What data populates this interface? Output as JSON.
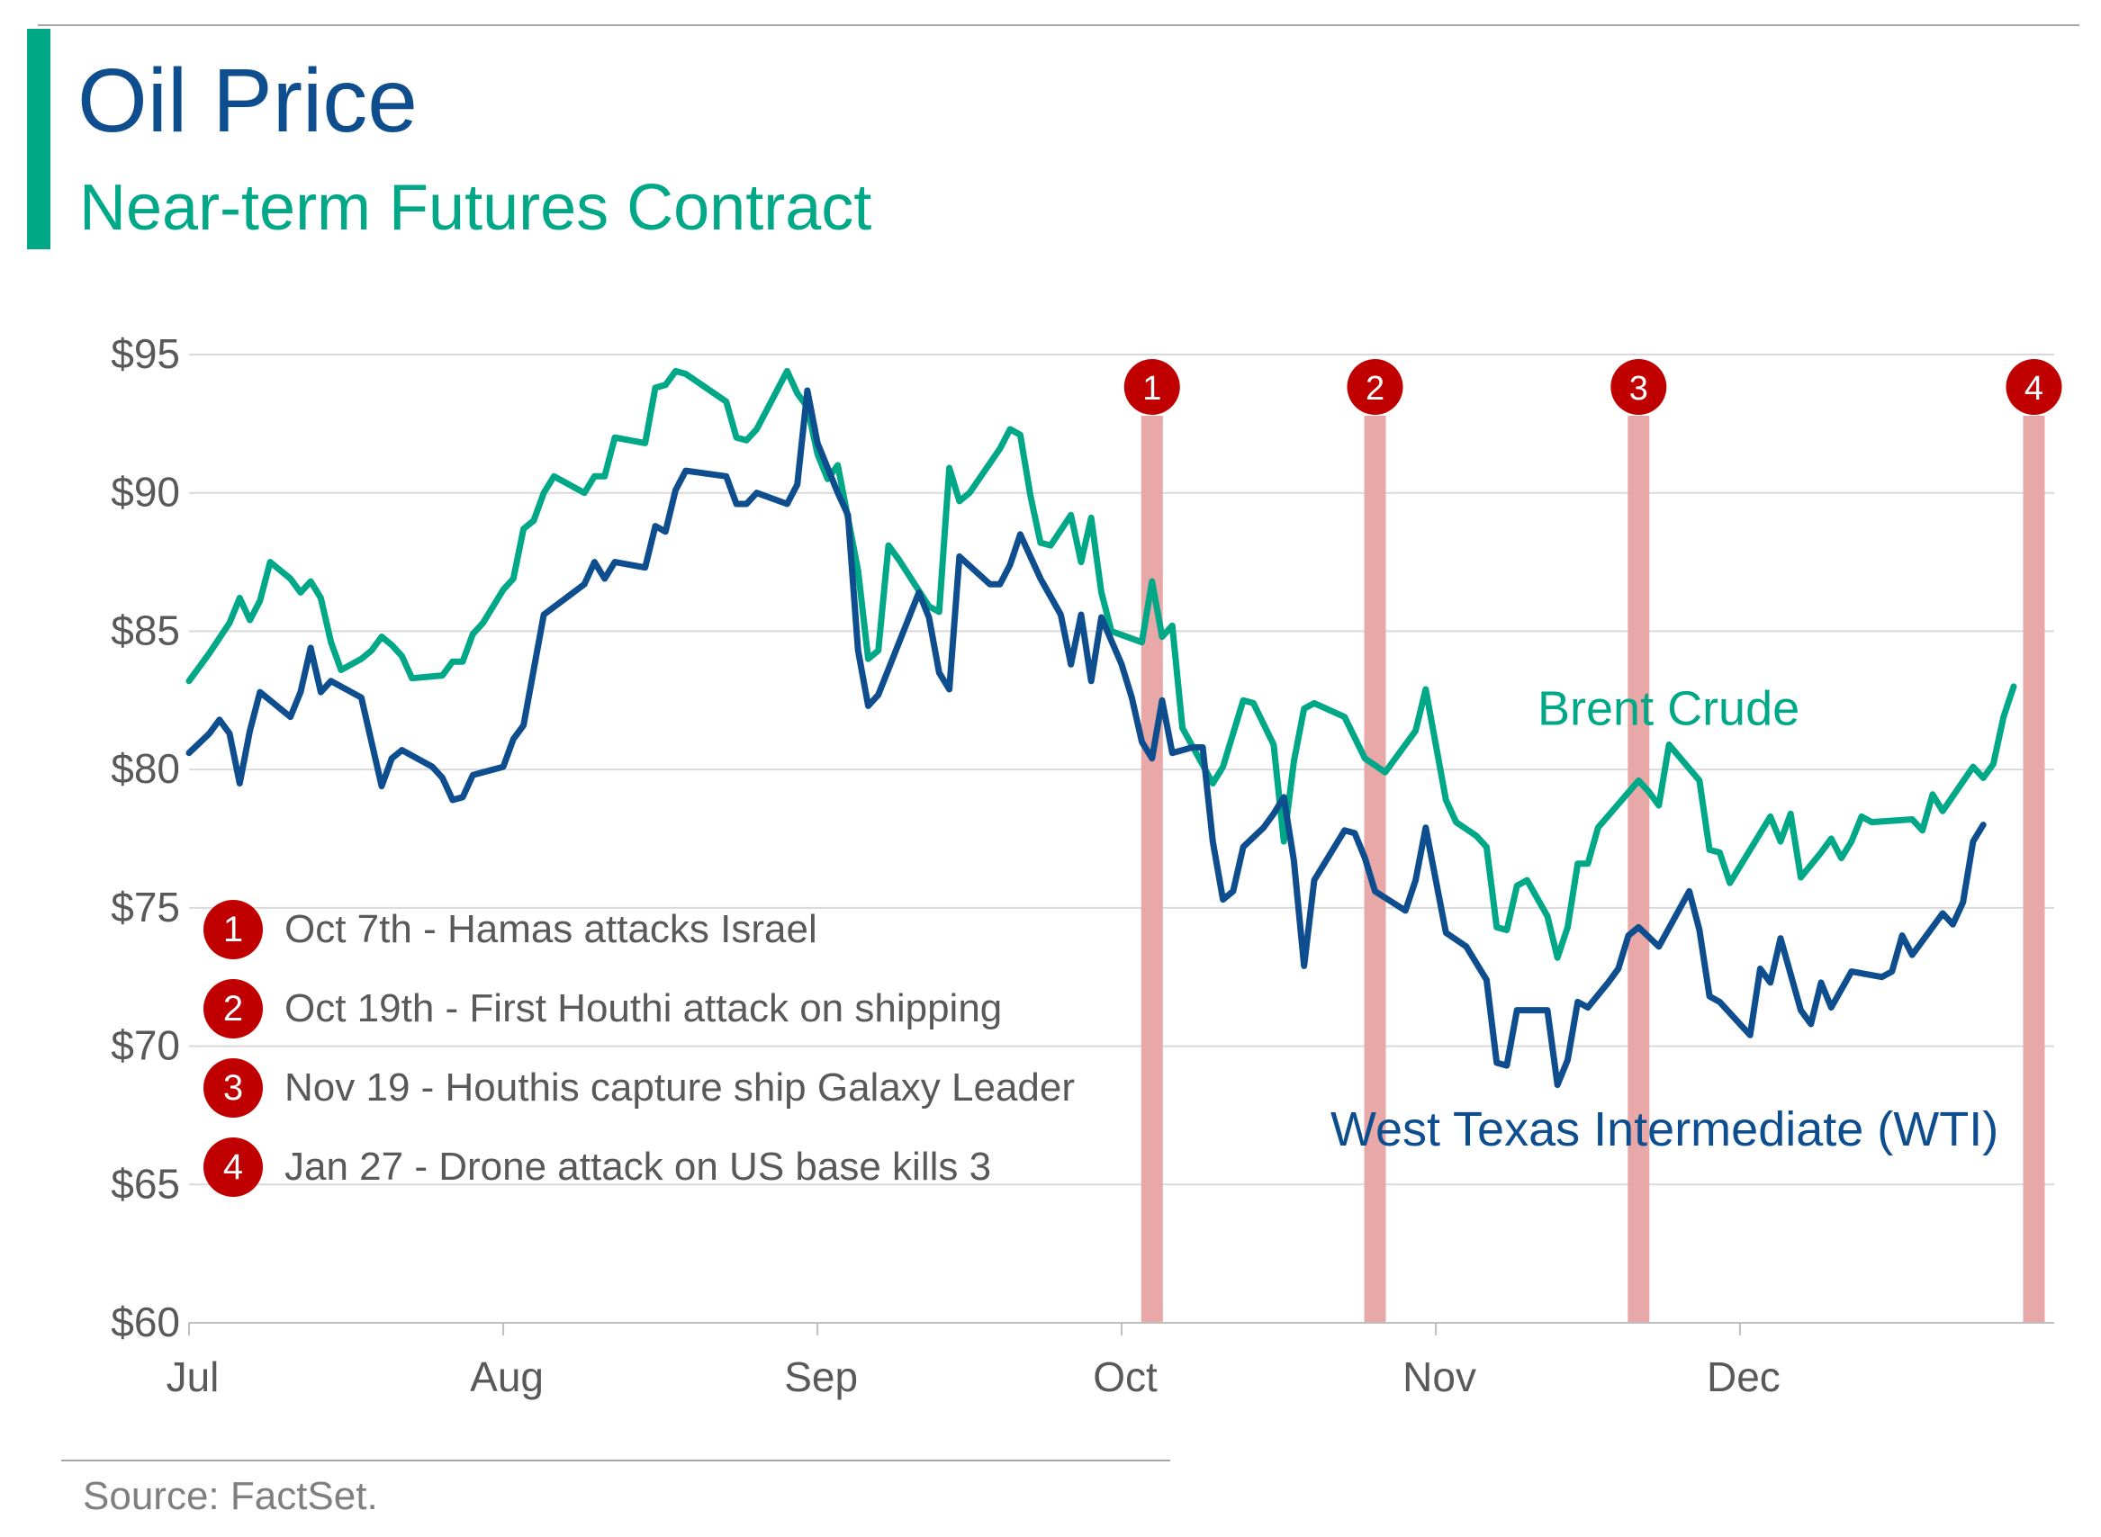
{
  "title": "Oil Price",
  "subtitle": "Near-term Futures Contract",
  "source": "Source: FactSet.",
  "colors": {
    "brent": "#00a887",
    "wti": "#0e4e8e",
    "event_band": "#e8a8a8",
    "event_badge": "#c00000",
    "accent": "#00a887"
  },
  "events": [
    {
      "num": "1",
      "text": "Oct 7th - Hamas attacks Israel"
    },
    {
      "num": "2",
      "text": "Oct 19th - First Houthi attack on shipping"
    },
    {
      "num": "3",
      "text": "Nov 19 - Houthis capture ship Galaxy Leader"
    },
    {
      "num": "4",
      "text": "Jan 27 - Drone attack on US base kills 3"
    }
  ],
  "chart_data": {
    "type": "line",
    "title": "Oil Price",
    "subtitle": "Near-term Futures Contract",
    "ylim": [
      60,
      95
    ],
    "yticks": [
      "$60",
      "$65",
      "$70",
      "$75",
      "$80",
      "$85",
      "$90",
      "$95"
    ],
    "ytick_values": [
      60,
      65,
      70,
      75,
      80,
      85,
      90,
      95
    ],
    "xlim": [
      0,
      184
    ],
    "xticks": [
      "Jul",
      "Aug",
      "Sep",
      "Oct",
      "Nov",
      "Dec"
    ],
    "xtick_values": [
      0,
      31,
      62,
      92,
      123,
      153
    ],
    "grid": true,
    "event_markers": [
      {
        "label": "1",
        "x": 95
      },
      {
        "label": "2",
        "x": 117
      },
      {
        "label": "3",
        "x": 143
      },
      {
        "label": "4",
        "x": 182
      }
    ],
    "series": [
      {
        "name": "Brent Crude",
        "label_anchor": [
          147,
          82.2
        ],
        "points": [
          [
            0,
            83.2
          ],
          [
            2,
            84.2
          ],
          [
            4,
            85.3
          ],
          [
            5,
            86.2
          ],
          [
            6,
            85.4
          ],
          [
            7,
            86.1
          ],
          [
            8,
            87.5
          ],
          [
            10,
            86.9
          ],
          [
            11,
            86.4
          ],
          [
            12,
            86.8
          ],
          [
            13,
            86.2
          ],
          [
            14,
            84.6
          ],
          [
            15,
            83.6
          ],
          [
            17,
            84.0
          ],
          [
            18,
            84.3
          ],
          [
            19,
            84.8
          ],
          [
            20,
            84.5
          ],
          [
            21,
            84.1
          ],
          [
            22,
            83.3
          ],
          [
            25,
            83.4
          ],
          [
            26,
            83.9
          ],
          [
            27,
            83.9
          ],
          [
            28,
            84.9
          ],
          [
            29,
            85.3
          ],
          [
            31,
            86.5
          ],
          [
            32,
            86.9
          ],
          [
            33,
            88.7
          ],
          [
            34,
            89.0
          ],
          [
            35,
            90.0
          ],
          [
            36,
            90.6
          ],
          [
            39,
            90.0
          ],
          [
            40,
            90.6
          ],
          [
            41,
            90.6
          ],
          [
            42,
            92.0
          ],
          [
            45,
            91.8
          ],
          [
            46,
            93.8
          ],
          [
            47,
            93.9
          ],
          [
            48,
            94.4
          ],
          [
            49,
            94.3
          ],
          [
            53,
            93.3
          ],
          [
            54,
            92.0
          ],
          [
            55,
            91.9
          ],
          [
            56,
            92.3
          ],
          [
            59,
            94.4
          ],
          [
            60,
            93.6
          ],
          [
            61,
            93.1
          ],
          [
            62,
            91.4
          ],
          [
            63,
            90.5
          ],
          [
            64,
            91.0
          ],
          [
            66,
            87.2
          ],
          [
            67,
            84.0
          ],
          [
            68,
            84.3
          ],
          [
            69,
            88.1
          ],
          [
            70,
            87.6
          ],
          [
            73,
            85.9
          ],
          [
            74,
            85.7
          ],
          [
            75,
            90.9
          ],
          [
            76,
            89.7
          ],
          [
            77,
            90.0
          ],
          [
            80,
            91.6
          ],
          [
            81,
            92.3
          ],
          [
            82,
            92.1
          ],
          [
            83,
            89.9
          ],
          [
            84,
            88.2
          ],
          [
            85,
            88.1
          ],
          [
            87,
            89.2
          ],
          [
            88,
            87.5
          ],
          [
            89,
            89.1
          ],
          [
            90,
            86.4
          ],
          [
            91,
            85.0
          ],
          [
            94,
            84.6
          ],
          [
            95,
            86.8
          ],
          [
            96,
            84.8
          ],
          [
            97,
            85.2
          ],
          [
            98,
            81.5
          ],
          [
            101,
            79.5
          ],
          [
            102,
            80.1
          ],
          [
            104,
            82.5
          ],
          [
            105,
            82.4
          ],
          [
            107,
            80.9
          ],
          [
            108,
            77.4
          ],
          [
            109,
            80.3
          ],
          [
            110,
            82.2
          ],
          [
            111,
            82.4
          ],
          [
            114,
            81.9
          ],
          [
            116,
            80.4
          ],
          [
            118,
            79.9
          ],
          [
            121,
            81.4
          ],
          [
            122,
            82.9
          ],
          [
            124,
            78.9
          ],
          [
            125,
            78.1
          ],
          [
            127,
            77.6
          ],
          [
            128,
            77.2
          ],
          [
            129,
            74.3
          ],
          [
            130,
            74.2
          ],
          [
            131,
            75.8
          ],
          [
            132,
            76.0
          ],
          [
            134,
            74.7
          ],
          [
            135,
            73.2
          ],
          [
            136,
            74.3
          ],
          [
            137,
            76.6
          ],
          [
            138,
            76.6
          ],
          [
            139,
            77.9
          ],
          [
            143,
            79.6
          ],
          [
            144,
            79.2
          ],
          [
            145,
            78.7
          ],
          [
            146,
            80.9
          ],
          [
            149,
            79.6
          ],
          [
            150,
            77.1
          ],
          [
            151,
            77.0
          ],
          [
            152,
            75.9
          ],
          [
            156,
            78.3
          ],
          [
            157,
            77.4
          ],
          [
            158,
            78.4
          ],
          [
            159,
            76.1
          ],
          [
            161,
            77.0
          ],
          [
            162,
            77.5
          ],
          [
            163,
            76.8
          ],
          [
            164,
            77.4
          ],
          [
            165,
            78.3
          ],
          [
            166,
            78.1
          ],
          [
            170,
            78.2
          ],
          [
            171,
            77.8
          ],
          [
            172,
            79.1
          ],
          [
            173,
            78.5
          ],
          [
            176,
            80.1
          ],
          [
            177,
            79.7
          ],
          [
            178,
            80.2
          ],
          [
            179,
            81.9
          ],
          [
            180,
            83.0
          ]
        ]
      },
      {
        "name": "West Texas Intermediate (WTI)",
        "label_anchor": [
          147,
          67.0
        ],
        "points": [
          [
            0,
            80.6
          ],
          [
            2,
            81.3
          ],
          [
            3,
            81.8
          ],
          [
            4,
            81.3
          ],
          [
            5,
            79.5
          ],
          [
            6,
            81.4
          ],
          [
            7,
            82.8
          ],
          [
            8,
            82.5
          ],
          [
            10,
            81.9
          ],
          [
            11,
            82.8
          ],
          [
            12,
            84.4
          ],
          [
            13,
            82.8
          ],
          [
            14,
            83.2
          ],
          [
            17,
            82.6
          ],
          [
            19,
            79.4
          ],
          [
            20,
            80.4
          ],
          [
            21,
            80.7
          ],
          [
            24,
            80.1
          ],
          [
            25,
            79.7
          ],
          [
            26,
            78.9
          ],
          [
            27,
            79.0
          ],
          [
            28,
            79.8
          ],
          [
            31,
            80.1
          ],
          [
            32,
            81.1
          ],
          [
            33,
            81.6
          ],
          [
            35,
            85.6
          ],
          [
            39,
            86.7
          ],
          [
            40,
            87.5
          ],
          [
            41,
            86.9
          ],
          [
            42,
            87.5
          ],
          [
            45,
            87.3
          ],
          [
            46,
            88.8
          ],
          [
            47,
            88.6
          ],
          [
            48,
            90.1
          ],
          [
            49,
            90.8
          ],
          [
            53,
            90.6
          ],
          [
            54,
            89.6
          ],
          [
            55,
            89.6
          ],
          [
            56,
            90.0
          ],
          [
            59,
            89.6
          ],
          [
            60,
            90.3
          ],
          [
            61,
            93.7
          ],
          [
            62,
            91.8
          ],
          [
            64,
            90.0
          ],
          [
            65,
            89.2
          ],
          [
            66,
            84.3
          ],
          [
            67,
            82.3
          ],
          [
            68,
            82.7
          ],
          [
            72,
            86.4
          ],
          [
            73,
            85.5
          ],
          [
            74,
            83.5
          ],
          [
            75,
            82.9
          ],
          [
            76,
            87.7
          ],
          [
            79,
            86.7
          ],
          [
            80,
            86.7
          ],
          [
            81,
            87.4
          ],
          [
            82,
            88.5
          ],
          [
            84,
            86.9
          ],
          [
            86,
            85.6
          ],
          [
            87,
            83.8
          ],
          [
            88,
            85.6
          ],
          [
            89,
            83.2
          ],
          [
            90,
            85.5
          ],
          [
            92,
            83.8
          ],
          [
            93,
            82.6
          ],
          [
            94,
            81.0
          ],
          [
            95,
            80.4
          ],
          [
            96,
            82.5
          ],
          [
            97,
            80.6
          ],
          [
            99,
            80.8
          ],
          [
            100,
            80.8
          ],
          [
            101,
            77.4
          ],
          [
            102,
            75.3
          ],
          [
            103,
            75.6
          ],
          [
            104,
            77.2
          ],
          [
            106,
            77.9
          ],
          [
            107,
            78.4
          ],
          [
            108,
            79.0
          ],
          [
            109,
            76.7
          ],
          [
            110,
            72.9
          ],
          [
            111,
            76.0
          ],
          [
            114,
            77.8
          ],
          [
            115,
            77.7
          ],
          [
            116,
            76.8
          ],
          [
            117,
            75.6
          ],
          [
            120,
            74.9
          ],
          [
            121,
            76.0
          ],
          [
            122,
            77.9
          ],
          [
            124,
            74.1
          ],
          [
            126,
            73.6
          ],
          [
            127,
            73.0
          ],
          [
            128,
            72.4
          ],
          [
            129,
            69.4
          ],
          [
            130,
            69.3
          ],
          [
            131,
            71.3
          ],
          [
            134,
            71.3
          ],
          [
            135,
            68.6
          ],
          [
            136,
            69.5
          ],
          [
            137,
            71.6
          ],
          [
            138,
            71.4
          ],
          [
            140,
            72.3
          ],
          [
            141,
            72.8
          ],
          [
            142,
            74.0
          ],
          [
            143,
            74.3
          ],
          [
            145,
            73.6
          ],
          [
            148,
            75.6
          ],
          [
            149,
            74.2
          ],
          [
            150,
            71.8
          ],
          [
            151,
            71.6
          ],
          [
            154,
            70.4
          ],
          [
            155,
            72.8
          ],
          [
            156,
            72.3
          ],
          [
            157,
            73.9
          ],
          [
            159,
            71.3
          ],
          [
            160,
            70.8
          ],
          [
            161,
            72.3
          ],
          [
            162,
            71.4
          ],
          [
            164,
            72.7
          ],
          [
            167,
            72.5
          ],
          [
            168,
            72.7
          ],
          [
            169,
            74.0
          ],
          [
            170,
            73.3
          ],
          [
            173,
            74.8
          ],
          [
            174,
            74.4
          ],
          [
            175,
            75.2
          ],
          [
            176,
            77.4
          ],
          [
            177,
            78.0
          ]
        ]
      }
    ]
  }
}
